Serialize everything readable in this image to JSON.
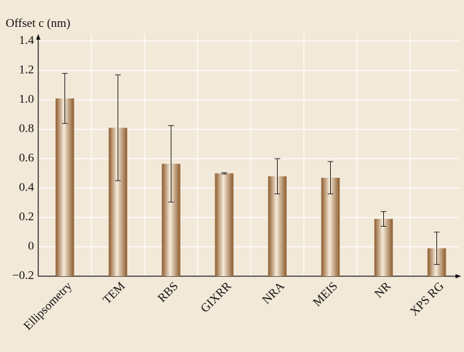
{
  "chart_data": {
    "type": "bar",
    "y_label": "Offset c (nm)",
    "categories": [
      "Ellipsometry",
      "TEM",
      "RBS",
      "GIXRR",
      "NRA",
      "MEIS",
      "NR",
      "XPS RG"
    ],
    "values": [
      1.01,
      0.81,
      0.565,
      0.5,
      0.48,
      0.47,
      0.19,
      -0.01
    ],
    "errors": [
      0.17,
      0.36,
      0.26,
      0.005,
      0.12,
      0.11,
      0.05,
      0.11
    ],
    "color": "#8b5a2b",
    "ylim": [
      -0.2,
      1.4
    ],
    "yticks": [
      {
        "value": -0.2,
        "label": "−0.2"
      },
      0,
      0.2,
      0.4,
      0.6,
      0.8,
      {
        "value": 1,
        "label": "1.0"
      },
      1.2,
      1.4
    ],
    "grid": true
  }
}
